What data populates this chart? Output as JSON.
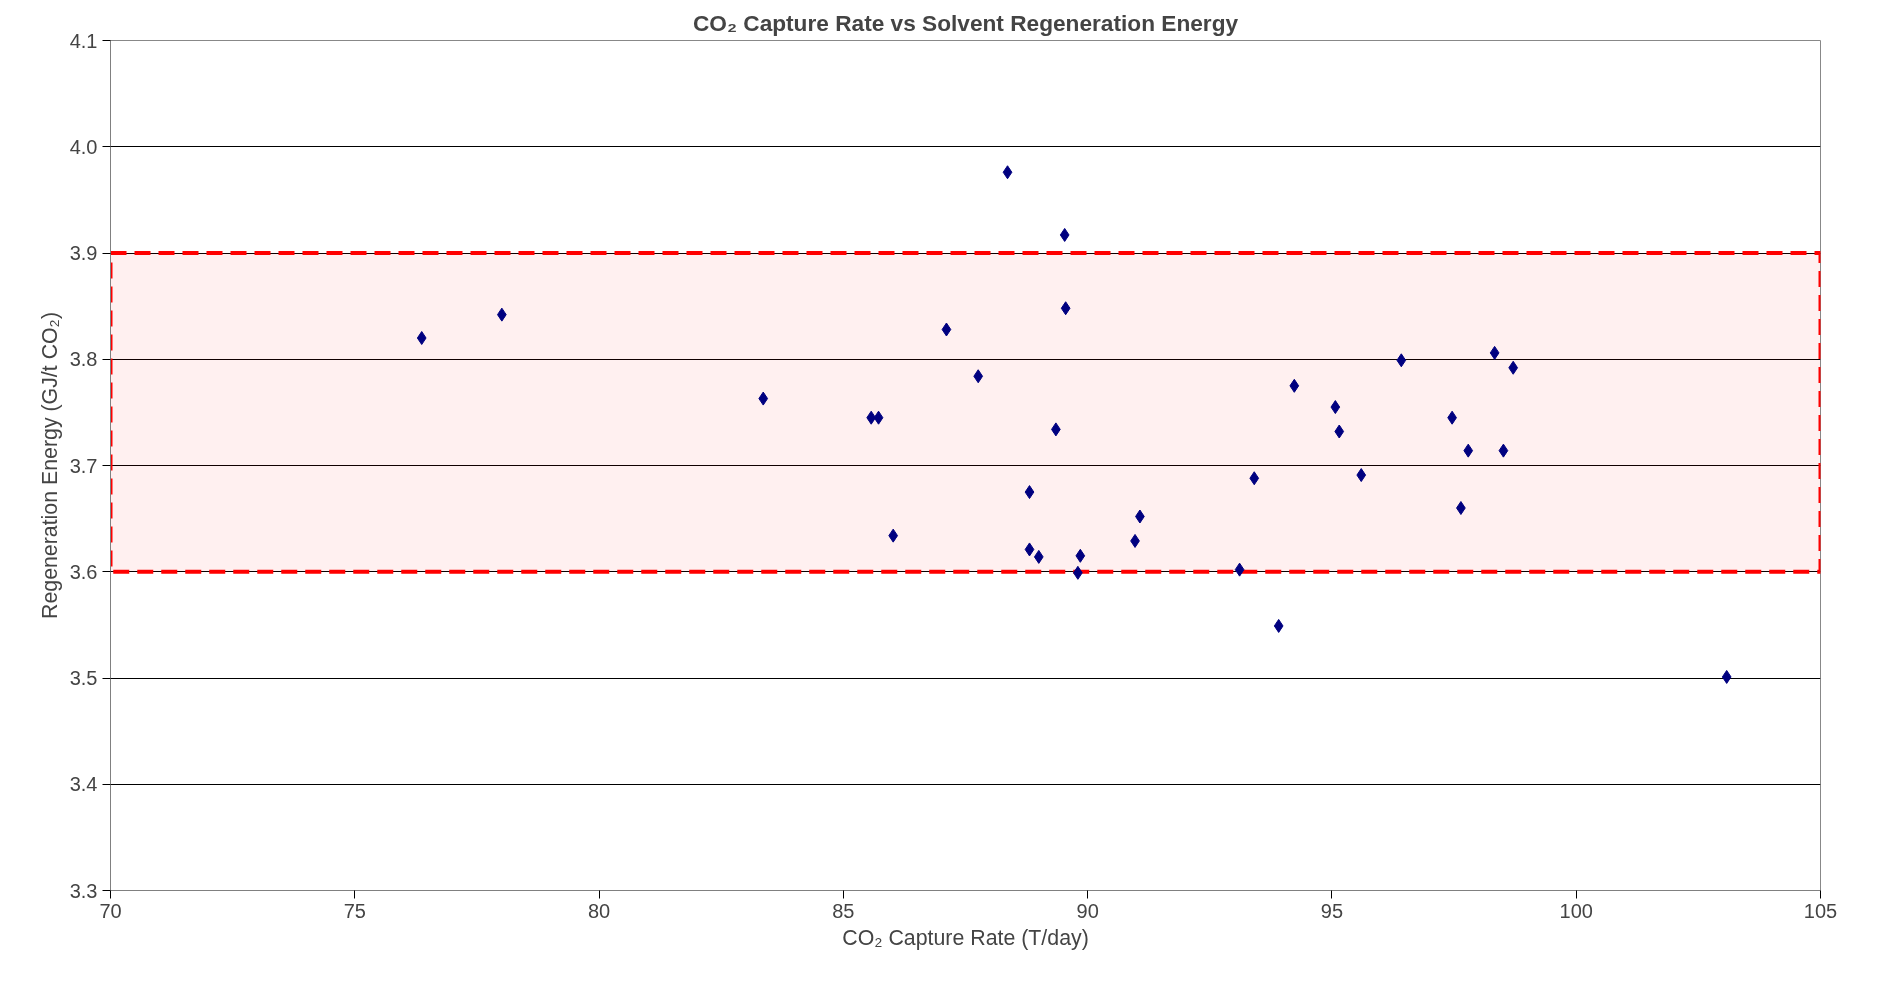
{
  "chart_data": {
    "type": "scatter",
    "title": "CO₂ Capture Rate vs Solvent Regeneration Energy",
    "xlabel": "CO₂ Capture Rate (T/day)",
    "ylabel": "Regeneration Energy (GJ/t CO₂)",
    "x": [
      76.37,
      78.01,
      83.36,
      85.57,
      85.72,
      86.02,
      87.11,
      87.76,
      88.36,
      89.53,
      89.55,
      89.35,
      88.81,
      88.81,
      89.0,
      89.85,
      89.8,
      90.97,
      91.07,
      93.11,
      93.41,
      93.91,
      94.23,
      95.07,
      95.15,
      95.6,
      96.42,
      97.46,
      97.64,
      97.79,
      98.33,
      98.51,
      98.71,
      103.08
    ],
    "series": [
      {
        "color": "#000080",
        "values": [
          3.82,
          3.842,
          3.763,
          3.745,
          3.745,
          3.634,
          3.828,
          3.784,
          3.976,
          3.917,
          3.848,
          3.734,
          3.675,
          3.621,
          3.614,
          3.615,
          3.599,
          3.629,
          3.652,
          3.602,
          3.688,
          3.549,
          3.775,
          3.755,
          3.732,
          3.691,
          3.799,
          3.745,
          3.66,
          3.714,
          3.806,
          3.714,
          3.792,
          3.501
        ]
      }
    ],
    "xlim": [
      70,
      105
    ],
    "xticks": [
      70,
      75,
      80,
      85,
      90,
      95,
      100,
      105
    ],
    "ylim": [
      3.3,
      4.1
    ],
    "yticks": [
      3.3,
      3.4,
      3.5,
      3.6,
      3.7,
      3.8,
      3.9,
      {
        "value": 4.0,
        "label": "4.0"
      },
      4.1
    ],
    "bands": [
      {
        "axis": "y",
        "from": 3.6,
        "to": 3.9,
        "color": "#ff0000"
      }
    ],
    "grid": "y",
    "marker": "diamond"
  }
}
